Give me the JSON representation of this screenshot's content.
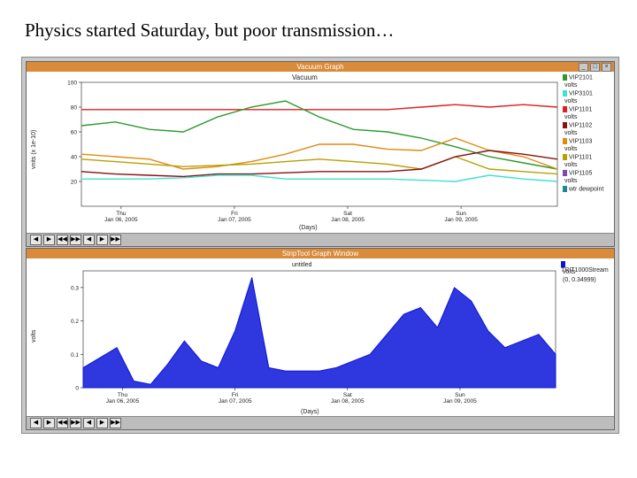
{
  "slide": {
    "title": "Physics started Saturday, but poor transmission…"
  },
  "top_window": {
    "title": "Vacuum Graph",
    "buttons": [
      "_",
      "□",
      "×"
    ],
    "toolbar": [
      "◀",
      "▶",
      "◀◀",
      "▶▶",
      "◀",
      "▶",
      "▶▶"
    ]
  },
  "bottom_window": {
    "title": "StripTool Graph Window",
    "toolbar": [
      "◀",
      "▶",
      "◀◀",
      "▶▶",
      "◀",
      "▶",
      "▶▶"
    ]
  },
  "colors": {
    "green": "#2e9a2e",
    "cyan": "#40e0d0",
    "red": "#e0201e",
    "darkred": "#8b1010",
    "orange": "#e08a10",
    "olive": "#b8a000",
    "purple": "#7a4ab0",
    "teal": "#1a8a8a",
    "blue": "#0a14d8"
  },
  "chart_data": [
    {
      "type": "line",
      "title": "Vacuum",
      "xlabel": "(Days)",
      "ylabel": "vnits (x 1e-10)",
      "ylim": [
        0,
        100
      ],
      "yticks": [
        "20",
        "40",
        "60",
        "80",
        "100"
      ],
      "xticks": [
        {
          "day": "Thu",
          "date": "Jan 06, 2005"
        },
        {
          "day": "Fri",
          "date": "Jan 07, 2005"
        },
        {
          "day": "Sat",
          "date": "Jan 08, 2005"
        },
        {
          "day": "Sun",
          "date": "Jan 09, 2005"
        }
      ],
      "legend_position": "right",
      "legend": [
        {
          "label": "VIP2101",
          "unit": "volts",
          "color": "#2e9a2e"
        },
        {
          "label": "VIP3101",
          "unit": "volts",
          "color": "#40e0d0"
        },
        {
          "label": "VIP1101",
          "unit": "volts",
          "color": "#e0201e"
        },
        {
          "label": "VIP1102",
          "unit": "volts",
          "color": "#8b1010"
        },
        {
          "label": "VIP1103",
          "unit": "volts",
          "color": "#e08a10"
        },
        {
          "label": "VIP1101",
          "unit": "volts",
          "color": "#b8a000"
        },
        {
          "label": "VIP1105",
          "unit": "volts",
          "color": "#7a4ab0"
        },
        {
          "label": "wtr dewpoint",
          "unit": "",
          "color": "#1a8a8a"
        }
      ],
      "x": [
        0,
        0.3,
        0.6,
        0.9,
        1.2,
        1.5,
        1.8,
        2.1,
        2.4,
        2.7,
        3.0,
        3.3,
        3.6,
        3.9,
        4.2
      ],
      "series": [
        {
          "color": "#e0201e",
          "values": [
            78,
            78,
            78,
            78,
            78,
            78,
            78,
            78,
            78,
            78,
            80,
            82,
            80,
            82,
            80
          ]
        },
        {
          "color": "#2e9a2e",
          "values": [
            65,
            68,
            62,
            60,
            72,
            80,
            85,
            72,
            62,
            60,
            55,
            48,
            40,
            35,
            30
          ]
        },
        {
          "color": "#e08a10",
          "values": [
            42,
            40,
            38,
            30,
            32,
            36,
            42,
            50,
            50,
            46,
            45,
            55,
            45,
            40,
            30
          ]
        },
        {
          "color": "#b8a000",
          "values": [
            38,
            36,
            34,
            32,
            33,
            34,
            36,
            38,
            36,
            34,
            30,
            40,
            30,
            28,
            26
          ]
        },
        {
          "color": "#8b1010",
          "values": [
            28,
            26,
            25,
            24,
            26,
            26,
            27,
            28,
            28,
            28,
            30,
            40,
            45,
            42,
            38
          ]
        },
        {
          "color": "#40e0d0",
          "values": [
            22,
            22,
            22,
            23,
            25,
            25,
            22,
            22,
            22,
            22,
            21,
            20,
            25,
            22,
            20
          ]
        }
      ]
    },
    {
      "type": "line",
      "title": "untitled",
      "xlabel": "(Days)",
      "ylabel": "volts",
      "ylim": [
        0,
        0.35
      ],
      "yticks": [
        "0",
        "0.1",
        "0.2",
        "0.3"
      ],
      "xticks": [
        {
          "day": "Thu",
          "date": "Jan 06, 2005"
        },
        {
          "day": "Fri",
          "date": "Jan 07, 2005"
        },
        {
          "day": "Sat",
          "date": "Jan 08, 2005"
        },
        {
          "day": "Sun",
          "date": "Jan 09, 2005"
        }
      ],
      "legend_position": "top-right",
      "legend": [
        {
          "label": "TRIT1000Stream",
          "unit": "volts",
          "range": "(0, 0.34999)",
          "color": "#0a14d8"
        }
      ],
      "x": [
        0,
        0.15,
        0.3,
        0.45,
        0.6,
        0.75,
        0.9,
        1.05,
        1.2,
        1.35,
        1.5,
        1.65,
        1.8,
        1.95,
        2.1,
        2.25,
        2.4,
        2.55,
        2.7,
        2.85,
        3.0,
        3.15,
        3.3,
        3.45,
        3.6,
        3.75,
        3.9,
        4.05,
        4.2
      ],
      "series": [
        {
          "color": "#0a14d8",
          "values": [
            0.06,
            0.09,
            0.12,
            0.02,
            0.01,
            0.07,
            0.14,
            0.08,
            0.06,
            0.17,
            0.33,
            0.06,
            0.05,
            0.05,
            0.05,
            0.06,
            0.08,
            0.1,
            0.16,
            0.22,
            0.24,
            0.18,
            0.3,
            0.26,
            0.17,
            0.12,
            0.14,
            0.16,
            0.1
          ]
        }
      ]
    }
  ]
}
